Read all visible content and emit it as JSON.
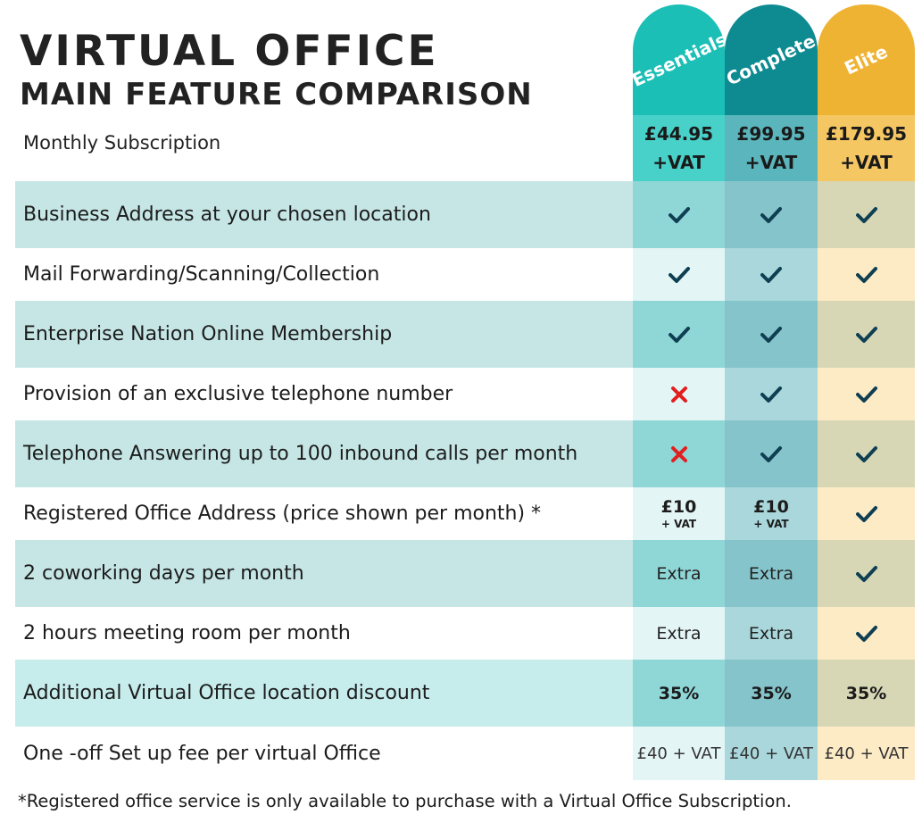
{
  "header": {
    "title": "VIRTUAL OFFICE",
    "subtitle": "MAIN FEATURE COMPARISON",
    "monthly_label": "Monthly Subscription"
  },
  "plans": [
    {
      "name": "Essentials",
      "price": "£44.95",
      "vat": "+VAT",
      "tab_color": "#1bbfb6"
    },
    {
      "name": "Complete",
      "price": "£99.95",
      "vat": "+VAT",
      "tab_color": "#0e8a91"
    },
    {
      "name": "Elite",
      "price": "£179.95",
      "vat": "+VAT",
      "tab_color": "#efb334"
    }
  ],
  "features": [
    {
      "label": "Business Address at your chosen location",
      "values": [
        "tick",
        "tick",
        "tick"
      ]
    },
    {
      "label": "Mail Forwarding/Scanning/Collection",
      "values": [
        "tick",
        "tick",
        "tick"
      ]
    },
    {
      "label": "Enterprise Nation Online Membership",
      "values": [
        "tick",
        "tick",
        "tick"
      ]
    },
    {
      "label": "Provision of an exclusive telephone number",
      "values": [
        "cross",
        "tick",
        "tick"
      ]
    },
    {
      "label": "Telephone Answering up to 100 inbound calls per month",
      "values": [
        "cross",
        "tick",
        "tick"
      ]
    },
    {
      "label": "Registered Office Address (price shown per month) *",
      "values": [
        "£10|+ VAT",
        "£10|+ VAT",
        "tick"
      ]
    },
    {
      "label": "2 coworking days per month",
      "values": [
        "Extra",
        "Extra",
        "tick"
      ]
    },
    {
      "label": "2 hours meeting room per month",
      "values": [
        "Extra",
        "Extra",
        "tick"
      ]
    },
    {
      "label": "Additional Virtual Office location discount",
      "values": [
        "35%",
        "35%",
        "35%"
      ]
    },
    {
      "label": "One -off Set up fee per virtual Office",
      "values": [
        "£40 + VAT",
        "£40 + VAT",
        "£40 + VAT"
      ]
    }
  ],
  "footnote": "*Registered office service is only available to purchase with a Virtual Office Subscription.",
  "colors": {
    "tick": "#0f3f52",
    "cross": "#e21f1f",
    "row_dark": "#c6e6e6",
    "row_light": "#ffffff"
  }
}
